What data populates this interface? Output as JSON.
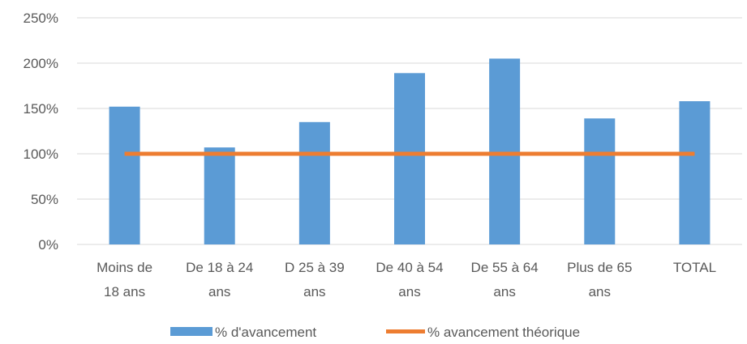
{
  "chart_data": {
    "type": "bar",
    "categories": [
      [
        "Moins de",
        "18 ans"
      ],
      [
        "De 18 à 24",
        "ans"
      ],
      [
        "D 25 à 39",
        "ans"
      ],
      [
        "De 40 à 54",
        "ans"
      ],
      [
        "De 55 à 64",
        "ans"
      ],
      [
        "Plus de 65",
        "ans"
      ],
      [
        "TOTAL"
      ]
    ],
    "series": [
      {
        "name": "% d'avancement",
        "type": "bar",
        "color": "#5B9BD5",
        "values": [
          152,
          107,
          135,
          189,
          205,
          139,
          158
        ]
      },
      {
        "name": "% avancement théorique",
        "type": "line",
        "color": "#ED7D31",
        "values": [
          100,
          100,
          100,
          100,
          100,
          100,
          100
        ]
      }
    ],
    "y_ticks": [
      "0%",
      "50%",
      "100%",
      "150%",
      "200%",
      "250%"
    ],
    "ylim": [
      0,
      250
    ],
    "grid": true,
    "legend_position": "bottom"
  }
}
